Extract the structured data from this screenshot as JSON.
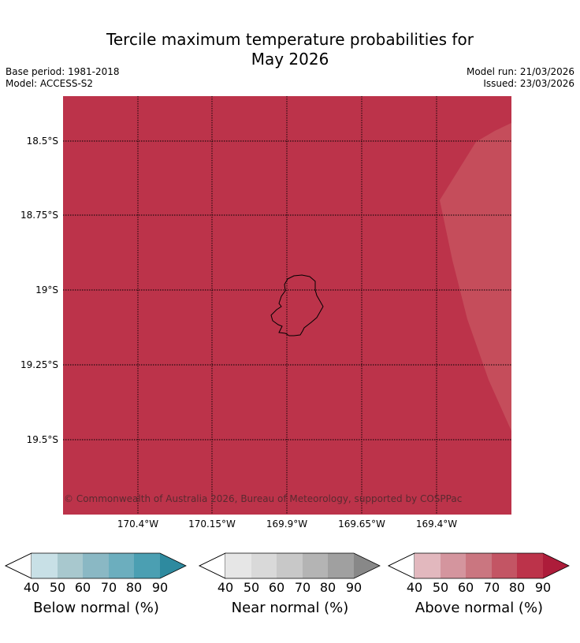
{
  "title_line1": "Tercile maximum temperature probabilities for",
  "title_line2": "May 2026",
  "base_period": "Base period: 1981-2018",
  "model": "Model: ACCESS-S2",
  "model_run": "Model run: 21/03/2026",
  "issued": "Issued: 23/03/2026",
  "map": {
    "fill_color": "#bc334a",
    "lighter_region_color": "#c54d5b",
    "lat_labels": [
      "18.5°S",
      "18.75°S",
      "19°S",
      "19.25°S",
      "19.5°S"
    ],
    "lon_labels": [
      "170.4°W",
      "170.15°W",
      "169.9°W",
      "169.65°W",
      "169.4°W"
    ],
    "copyright": "© Commonwealth of Australia 2026, Bureau of Meteorology, supported by COSPPac",
    "island": "Niue outline"
  },
  "colorbars": [
    {
      "label": "Below normal (%)",
      "ticks": [
        "40",
        "50",
        "60",
        "70",
        "80",
        "90"
      ],
      "colors": [
        "#c8e0e6",
        "#a8c8ce",
        "#8ab8c4",
        "#6caebe",
        "#4b9fb2",
        "#2e8a9f"
      ]
    },
    {
      "label": "Near normal (%)",
      "ticks": [
        "40",
        "50",
        "60",
        "70",
        "80",
        "90"
      ],
      "colors": [
        "#e6e6e6",
        "#d9d9d9",
        "#c8c8c8",
        "#b4b4b4",
        "#a0a0a0",
        "#888888"
      ]
    },
    {
      "label": "Above normal (%)",
      "ticks": [
        "40",
        "50",
        "60",
        "70",
        "80",
        "90"
      ],
      "colors": [
        "#e2b8be",
        "#d4959e",
        "#ca7680",
        "#c35564",
        "#bc334a",
        "#ad1c3a"
      ]
    }
  ]
}
